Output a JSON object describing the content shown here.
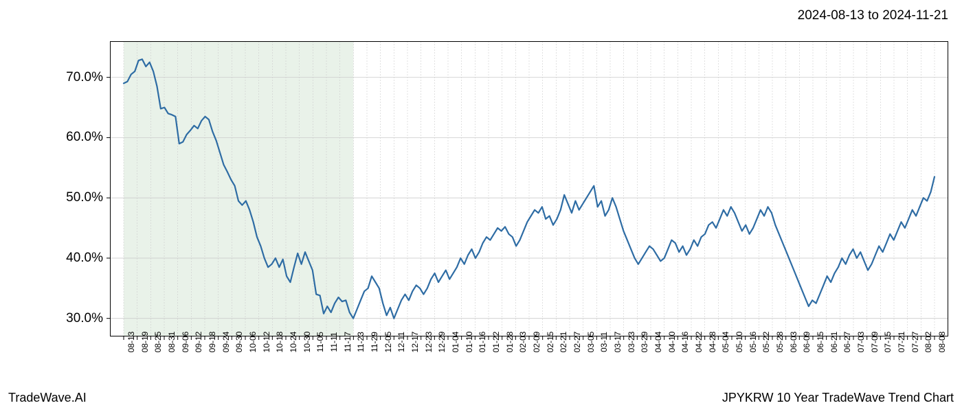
{
  "header": {
    "date_range": "2024-08-13 to 2024-11-21"
  },
  "footer": {
    "left": "TradeWave.AI",
    "right": "JPYKRW 10 Year TradeWave Trend Chart"
  },
  "chart": {
    "type": "line",
    "background_color": "#ffffff",
    "plot_border_color": "#000000",
    "grid_color": "#cccccc",
    "highlight_band": {
      "fill": "#d4e6d4",
      "opacity": 0.5,
      "x_start_index": 0,
      "x_end_index": 17
    },
    "line_color": "#2e6ca4",
    "line_width": 2.2,
    "y_axis": {
      "min": 27,
      "max": 76,
      "ticks": [
        30,
        40,
        50,
        60,
        70
      ],
      "tick_labels": [
        "30.0%",
        "40.0%",
        "50.0%",
        "60.0%",
        "70.0%"
      ],
      "label_fontsize": 19
    },
    "x_axis": {
      "tick_labels": [
        "08-13",
        "08-19",
        "08-25",
        "08-31",
        "09-06",
        "09-12",
        "09-18",
        "09-24",
        "09-30",
        "10-06",
        "10-12",
        "10-18",
        "10-24",
        "10-30",
        "11-05",
        "11-11",
        "11-17",
        "11-23",
        "11-29",
        "12-05",
        "12-11",
        "12-17",
        "12-23",
        "12-29",
        "01-04",
        "01-10",
        "01-16",
        "01-22",
        "01-28",
        "02-03",
        "02-09",
        "02-15",
        "02-21",
        "02-27",
        "03-05",
        "03-11",
        "03-17",
        "03-23",
        "03-29",
        "04-04",
        "04-10",
        "04-16",
        "04-22",
        "04-28",
        "05-04",
        "05-10",
        "05-16",
        "05-22",
        "05-28",
        "06-03",
        "06-09",
        "06-15",
        "06-21",
        "06-27",
        "07-03",
        "07-09",
        "07-15",
        "07-21",
        "07-27",
        "08-02",
        "08-08"
      ],
      "label_fontsize": 12
    },
    "series": {
      "values": [
        69.0,
        69.3,
        70.5,
        71.0,
        72.8,
        73.0,
        71.8,
        72.5,
        71.0,
        68.5,
        64.8,
        65.0,
        64.0,
        63.8,
        63.5,
        59.0,
        59.3,
        60.5,
        61.2,
        62.0,
        61.5,
        62.8,
        63.5,
        63.0,
        61.0,
        59.5,
        57.5,
        55.5,
        54.3,
        53.0,
        52.0,
        49.5,
        48.8,
        49.5,
        48.0,
        46.0,
        43.5,
        42.0,
        40.0,
        38.5,
        39.0,
        40.0,
        38.5,
        39.8,
        37.0,
        36.0,
        38.5,
        40.8,
        39.0,
        41.0,
        39.5,
        38.0,
        34.0,
        33.8,
        30.8,
        32.0,
        31.0,
        32.5,
        33.5,
        32.8,
        33.0,
        31.0,
        30.0,
        31.5,
        33.0,
        34.5,
        35.0,
        37.0,
        36.0,
        35.0,
        32.5,
        30.5,
        31.8,
        30.0,
        31.5,
        33.0,
        34.0,
        33.0,
        34.5,
        35.5,
        35.0,
        34.0,
        35.0,
        36.5,
        37.5,
        36.0,
        37.0,
        38.0,
        36.5,
        37.5,
        38.5,
        40.0,
        39.0,
        40.5,
        41.5,
        40.0,
        41.0,
        42.5,
        43.5,
        43.0,
        44.0,
        45.0,
        44.5,
        45.2,
        44.0,
        43.5,
        42.0,
        43.0,
        44.5,
        46.0,
        47.0,
        48.0,
        47.5,
        48.5,
        46.5,
        47.0,
        45.5,
        46.5,
        48.0,
        50.5,
        49.0,
        47.5,
        49.5,
        48.0,
        49.0,
        50.0,
        51.0,
        52.0,
        48.5,
        49.5,
        47.0,
        48.0,
        50.0,
        48.5,
        46.5,
        44.5,
        43.0,
        41.5,
        40.0,
        39.0,
        40.0,
        41.0,
        42.0,
        41.5,
        40.5,
        39.5,
        40.0,
        41.5,
        43.0,
        42.5,
        41.0,
        42.0,
        40.5,
        41.5,
        43.0,
        42.0,
        43.5,
        44.0,
        45.5,
        46.0,
        45.0,
        46.5,
        48.0,
        47.0,
        48.5,
        47.5,
        46.0,
        44.5,
        45.5,
        44.0,
        45.0,
        46.5,
        48.0,
        47.0,
        48.5,
        47.5,
        45.5,
        44.0,
        42.5,
        41.0,
        39.5,
        38.0,
        36.5,
        35.0,
        33.5,
        32.0,
        33.0,
        32.5,
        34.0,
        35.5,
        37.0,
        36.0,
        37.5,
        38.5,
        40.0,
        39.0,
        40.5,
        41.5,
        40.0,
        41.0,
        39.5,
        38.0,
        39.0,
        40.5,
        42.0,
        41.0,
        42.5,
        44.0,
        43.0,
        44.5,
        46.0,
        45.0,
        46.5,
        48.0,
        47.0,
        48.5,
        50.0,
        49.5,
        51.0,
        53.5
      ]
    }
  }
}
